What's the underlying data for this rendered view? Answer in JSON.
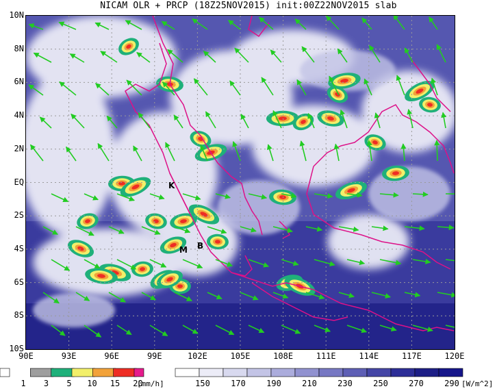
{
  "title": "NICAM OLR + PRCP (18Z25NOV2015) init:00Z22NOV2015 slab",
  "map": {
    "lat_labels": [
      "10N",
      "8N",
      "6N",
      "4N",
      "2N",
      "EQ",
      "2S",
      "4S",
      "6S",
      "8S",
      "10S"
    ],
    "lon_labels": [
      "90E",
      "93E",
      "96E",
      "99E",
      "102E",
      "105E",
      "108E",
      "111E",
      "114E",
      "117E",
      "120E"
    ],
    "lat_range": [
      -10,
      10
    ],
    "lon_range": [
      90,
      120
    ],
    "place_markers": [
      "K",
      "M",
      "B"
    ],
    "colors": {
      "cloud_high": "#f4f4fb",
      "cloud_low": "#2a2a8c",
      "coastline": "#dd1188",
      "wind_vector": "#22cc22",
      "grid": "#9a9a9a"
    }
  },
  "precip_legend": {
    "ticks": [
      "1",
      "3",
      "5",
      "10",
      "15",
      "20"
    ],
    "unit": "[mm/h]",
    "colors": [
      "#ffffff",
      "#9e9e9e",
      "#1fb07a",
      "#f2ef6a",
      "#f2a23a",
      "#ee2d24",
      "#e61b8d"
    ]
  },
  "olr_legend": {
    "ticks": [
      "150",
      "170",
      "190",
      "210",
      "230",
      "250",
      "270",
      "290"
    ],
    "unit": "[W/m^2]",
    "colors": [
      "#ffffff",
      "#ececf7",
      "#d8d9ef",
      "#c3c4e6",
      "#abacdc",
      "#9192d0",
      "#7778c3",
      "#5e5fb5",
      "#4546a6",
      "#2d2e97",
      "#1d1e86",
      "#16168a"
    ]
  }
}
